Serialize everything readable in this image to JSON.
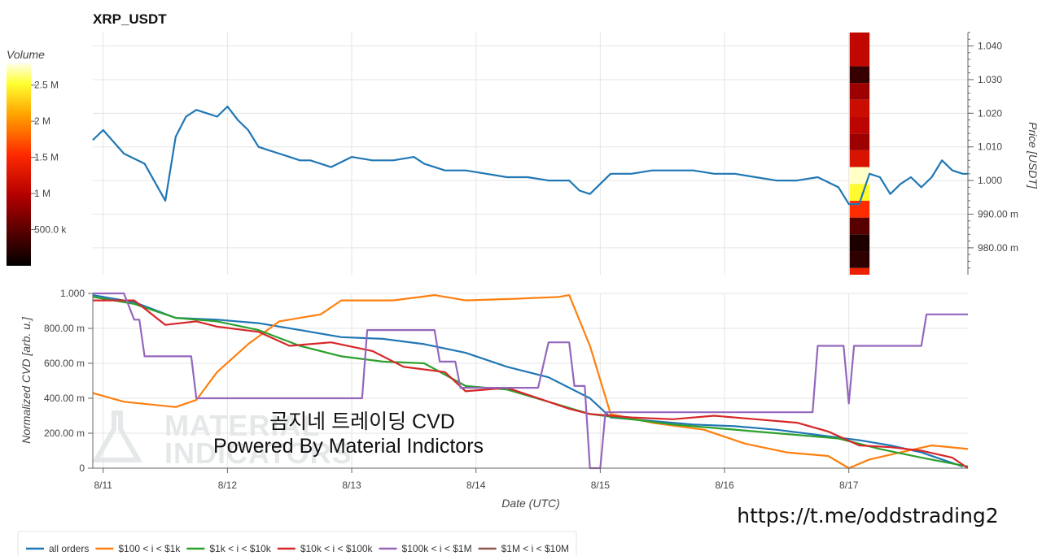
{
  "chart_data": [
    {
      "type": "line",
      "title": "XRP_USDT",
      "ylabel": "Price [USDT]",
      "xlim": [
        "2023-08-10T22:00",
        "2023-08-17T23:00"
      ],
      "ylim": [
        0.972,
        1.044
      ],
      "y_ticks": [
        {
          "value": 0.98,
          "label": "980.00 m"
        },
        {
          "value": 0.99,
          "label": "990.00 m"
        },
        {
          "value": 1.0,
          "label": "1.000"
        },
        {
          "value": 1.01,
          "label": "1.010"
        },
        {
          "value": 1.02,
          "label": "1.020"
        },
        {
          "value": 1.03,
          "label": "1.030"
        },
        {
          "value": 1.04,
          "label": "1.040"
        }
      ],
      "y_axis_side": "right",
      "grid": true,
      "series": [
        {
          "color": "#1f77b4",
          "x": [
            "2023-08-10T22:00",
            "2023-08-11T00:00",
            "2023-08-11T04:00",
            "2023-08-11T08:00",
            "2023-08-11T12:00",
            "2023-08-11T14:00",
            "2023-08-11T16:00",
            "2023-08-11T18:00",
            "2023-08-11T20:00",
            "2023-08-11T22:00",
            "2023-08-12T00:00",
            "2023-08-12T02:00",
            "2023-08-12T04:00",
            "2023-08-12T06:00",
            "2023-08-12T08:00",
            "2023-08-12T10:00",
            "2023-08-12T12:00",
            "2023-08-12T14:00",
            "2023-08-12T16:00",
            "2023-08-12T18:00",
            "2023-08-12T20:00",
            "2023-08-13T00:00",
            "2023-08-13T04:00",
            "2023-08-13T08:00",
            "2023-08-13T12:00",
            "2023-08-13T14:00",
            "2023-08-13T18:00",
            "2023-08-13T22:00",
            "2023-08-14T02:00",
            "2023-08-14T06:00",
            "2023-08-14T10:00",
            "2023-08-14T14:00",
            "2023-08-14T18:00",
            "2023-08-14T20:00",
            "2023-08-14T22:00",
            "2023-08-15T02:00",
            "2023-08-15T06:00",
            "2023-08-15T10:00",
            "2023-08-15T14:00",
            "2023-08-15T18:00",
            "2023-08-15T22:00",
            "2023-08-16T02:00",
            "2023-08-16T06:00",
            "2023-08-16T10:00",
            "2023-08-16T14:00",
            "2023-08-16T18:00",
            "2023-08-16T22:00",
            "2023-08-17T00:00",
            "2023-08-17T02:00",
            "2023-08-17T04:00",
            "2023-08-17T06:00",
            "2023-08-17T08:00",
            "2023-08-17T10:00",
            "2023-08-17T12:00",
            "2023-08-17T14:00",
            "2023-08-17T16:00",
            "2023-08-17T18:00",
            "2023-08-17T20:00",
            "2023-08-17T22:00",
            "2023-08-17T23:00"
          ],
          "values": [
            1.012,
            1.015,
            1.008,
            1.005,
            0.994,
            1.013,
            1.019,
            1.021,
            1.02,
            1.019,
            1.022,
            1.018,
            1.015,
            1.01,
            1.009,
            1.008,
            1.007,
            1.006,
            1.006,
            1.005,
            1.004,
            1.007,
            1.006,
            1.006,
            1.007,
            1.005,
            1.003,
            1.003,
            1.002,
            1.001,
            1.001,
            1.0,
            1.0,
            0.997,
            0.996,
            1.002,
            1.002,
            1.003,
            1.003,
            1.003,
            1.002,
            1.002,
            1.001,
            1.0,
            1.0,
            1.001,
            0.998,
            0.993,
            0.993,
            1.002,
            1.001,
            0.996,
            0.999,
            1.001,
            0.998,
            1.001,
            1.006,
            1.003,
            1.002,
            1.002
          ]
        }
      ],
      "volume_profile": {
        "label": "Volume",
        "colorbar_ticks": [
          "2.5 M",
          "2 M",
          "1.5 M",
          "1 M",
          "500.0 k"
        ],
        "colorbar_values": [
          2500000,
          2000000,
          1500000,
          1000000,
          500000
        ],
        "colorbar_range": [
          0,
          2800000
        ],
        "x_start": "2023-08-17T00:10",
        "x_end": "2023-08-17T04:00",
        "bins": [
          {
            "price_low": 0.972,
            "price_high": 0.974,
            "volume": 1400000
          },
          {
            "price_low": 0.974,
            "price_high": 0.979,
            "volume": 250000
          },
          {
            "price_low": 0.979,
            "price_high": 0.984,
            "volume": 150000
          },
          {
            "price_low": 0.984,
            "price_high": 0.989,
            "volume": 480000
          },
          {
            "price_low": 0.989,
            "price_high": 0.994,
            "volume": 1550000
          },
          {
            "price_low": 0.994,
            "price_high": 0.999,
            "volume": 2500000
          },
          {
            "price_low": 0.999,
            "price_high": 1.004,
            "volume": 2750000
          },
          {
            "price_low": 1.004,
            "price_high": 1.009,
            "volume": 1250000
          },
          {
            "price_low": 1.009,
            "price_high": 1.014,
            "volume": 850000
          },
          {
            "price_low": 1.014,
            "price_high": 1.019,
            "volume": 1050000
          },
          {
            "price_low": 1.019,
            "price_high": 1.024,
            "volume": 1150000
          },
          {
            "price_low": 1.024,
            "price_high": 1.029,
            "volume": 850000
          },
          {
            "price_low": 1.029,
            "price_high": 1.034,
            "volume": 300000
          },
          {
            "price_low": 1.034,
            "price_high": 1.044,
            "volume": 1080000
          }
        ]
      }
    },
    {
      "type": "line",
      "xlabel": "Date (UTC)",
      "ylabel": "Normalized CVD [arb. u.]",
      "xlim": [
        "2023-08-10T22:00",
        "2023-08-17T23:00"
      ],
      "ylim": [
        0,
        1.0
      ],
      "x_ticks": [
        "8/11",
        "8/12",
        "8/13",
        "8/14",
        "8/15",
        "8/16",
        "8/17"
      ],
      "y_ticks": [
        {
          "value": 0,
          "label": "0"
        },
        {
          "value": 0.2,
          "label": "200.00 m"
        },
        {
          "value": 0.4,
          "label": "400.00 m"
        },
        {
          "value": 0.6,
          "label": "600.00 m"
        },
        {
          "value": 0.8,
          "label": "800.00 m"
        },
        {
          "value": 1.0,
          "label": "1.000"
        }
      ],
      "grid": true,
      "legend_position": "bottom",
      "series": [
        {
          "name": "all orders",
          "color": "#1f77b4",
          "x": [
            "2023-08-10T22:00",
            "2023-08-11T06:00",
            "2023-08-11T14:00",
            "2023-08-11T22:00",
            "2023-08-12T06:00",
            "2023-08-12T14:00",
            "2023-08-12T22:00",
            "2023-08-13T06:00",
            "2023-08-13T14:00",
            "2023-08-13T22:00",
            "2023-08-14T06:00",
            "2023-08-14T14:00",
            "2023-08-14T22:00",
            "2023-08-15T02:00",
            "2023-08-15T10:00",
            "2023-08-15T18:00",
            "2023-08-16T02:00",
            "2023-08-16T10:00",
            "2023-08-16T18:00",
            "2023-08-17T02:00",
            "2023-08-17T08:00",
            "2023-08-17T14:00",
            "2023-08-17T18:00",
            "2023-08-17T22:00"
          ],
          "values": [
            0.99,
            0.95,
            0.86,
            0.85,
            0.83,
            0.79,
            0.75,
            0.74,
            0.71,
            0.66,
            0.58,
            0.52,
            0.4,
            0.29,
            0.27,
            0.25,
            0.24,
            0.22,
            0.19,
            0.16,
            0.13,
            0.09,
            0.05,
            0.01
          ]
        },
        {
          "name": "$100 < i < $1k",
          "color": "#ff7f0e",
          "x": [
            "2023-08-10T22:00",
            "2023-08-11T04:00",
            "2023-08-11T14:00",
            "2023-08-11T18:00",
            "2023-08-11T22:00",
            "2023-08-12T04:00",
            "2023-08-12T10:00",
            "2023-08-12T18:00",
            "2023-08-12T22:00",
            "2023-08-13T08:00",
            "2023-08-13T16:00",
            "2023-08-13T22:00",
            "2023-08-14T08:00",
            "2023-08-14T16:00",
            "2023-08-14T18:00",
            "2023-08-14T22:00",
            "2023-08-15T02:00",
            "2023-08-15T10:00",
            "2023-08-15T20:00",
            "2023-08-16T04:00",
            "2023-08-16T12:00",
            "2023-08-16T20:00",
            "2023-08-17T00:00",
            "2023-08-17T04:00",
            "2023-08-17T10:00",
            "2023-08-17T16:00",
            "2023-08-17T23:00"
          ],
          "values": [
            0.43,
            0.38,
            0.35,
            0.39,
            0.55,
            0.71,
            0.84,
            0.88,
            0.96,
            0.96,
            0.99,
            0.96,
            0.97,
            0.98,
            0.99,
            0.7,
            0.31,
            0.26,
            0.22,
            0.14,
            0.09,
            0.07,
            0.0,
            0.05,
            0.09,
            0.13,
            0.11
          ]
        },
        {
          "name": "$1k < i < $10k",
          "color": "#2ca02c",
          "x": [
            "2023-08-10T22:00",
            "2023-08-11T06:00",
            "2023-08-11T14:00",
            "2023-08-11T22:00",
            "2023-08-12T06:00",
            "2023-08-12T14:00",
            "2023-08-12T22:00",
            "2023-08-13T06:00",
            "2023-08-13T14:00",
            "2023-08-13T22:00",
            "2023-08-14T06:00",
            "2023-08-14T14:00",
            "2023-08-14T22:00",
            "2023-08-15T06:00",
            "2023-08-15T14:00",
            "2023-08-15T22:00",
            "2023-08-16T06:00",
            "2023-08-16T14:00",
            "2023-08-16T22:00",
            "2023-08-17T06:00",
            "2023-08-17T14:00",
            "2023-08-17T23:00"
          ],
          "values": [
            0.98,
            0.94,
            0.86,
            0.84,
            0.79,
            0.7,
            0.64,
            0.61,
            0.6,
            0.47,
            0.45,
            0.38,
            0.31,
            0.28,
            0.25,
            0.23,
            0.21,
            0.19,
            0.17,
            0.11,
            0.06,
            0.01
          ]
        },
        {
          "name": "$10k < i < $100k",
          "color": "#d62728",
          "x": [
            "2023-08-10T22:00",
            "2023-08-11T06:00",
            "2023-08-11T12:00",
            "2023-08-11T18:00",
            "2023-08-11T22:00",
            "2023-08-12T06:00",
            "2023-08-12T12:00",
            "2023-08-12T20:00",
            "2023-08-13T04:00",
            "2023-08-13T10:00",
            "2023-08-13T18:00",
            "2023-08-13T22:00",
            "2023-08-14T06:00",
            "2023-08-14T14:00",
            "2023-08-14T18:00",
            "2023-08-14T22:00",
            "2023-08-15T06:00",
            "2023-08-15T14:00",
            "2023-08-15T22:00",
            "2023-08-16T06:00",
            "2023-08-16T14:00",
            "2023-08-16T20:00",
            "2023-08-17T02:00",
            "2023-08-17T08:00",
            "2023-08-17T14:00",
            "2023-08-17T20:00",
            "2023-08-17T23:00"
          ],
          "values": [
            0.96,
            0.96,
            0.82,
            0.84,
            0.81,
            0.78,
            0.7,
            0.72,
            0.67,
            0.58,
            0.55,
            0.44,
            0.46,
            0.38,
            0.34,
            0.31,
            0.29,
            0.28,
            0.3,
            0.28,
            0.26,
            0.21,
            0.13,
            0.12,
            0.1,
            0.06,
            0.0
          ]
        },
        {
          "name": "$100k < i < $1M",
          "color": "#9467bd",
          "x": [
            "2023-08-10T22:00",
            "2023-08-11T04:00",
            "2023-08-11T06:00",
            "2023-08-11T07:00",
            "2023-08-11T08:00",
            "2023-08-11T17:00",
            "2023-08-11T18:00",
            "2023-08-13T02:00",
            "2023-08-13T03:00",
            "2023-08-13T16:00",
            "2023-08-13T17:00",
            "2023-08-13T20:00",
            "2023-08-13T21:00",
            "2023-08-14T12:00",
            "2023-08-14T14:00",
            "2023-08-14T18:00",
            "2023-08-14T19:00",
            "2023-08-14T21:00",
            "2023-08-14T22:00",
            "2023-08-15T00:00",
            "2023-08-15T01:00",
            "2023-08-16T17:00",
            "2023-08-16T18:00",
            "2023-08-16T23:00",
            "2023-08-17T00:00",
            "2023-08-17T01:00",
            "2023-08-17T14:00",
            "2023-08-17T15:00",
            "2023-08-17T23:00"
          ],
          "values": [
            1.0,
            1.0,
            0.85,
            0.85,
            0.64,
            0.64,
            0.4,
            0.4,
            0.79,
            0.79,
            0.61,
            0.61,
            0.46,
            0.46,
            0.72,
            0.72,
            0.47,
            0.47,
            0.0,
            0.0,
            0.32,
            0.32,
            0.7,
            0.7,
            0.37,
            0.7,
            0.7,
            0.88,
            0.88
          ]
        },
        {
          "name": "$1M < i < $10M",
          "color": "#8c564b",
          "x": [],
          "values": []
        }
      ]
    }
  ],
  "overlay_text": {
    "line1": "곰지네 트레이딩 CVD",
    "line2": "Powered By Material Indictors",
    "url": "https://t.me/oddstrading2",
    "watermark_line1": "MATERIAL",
    "watermark_line2": "INDICATORS"
  }
}
